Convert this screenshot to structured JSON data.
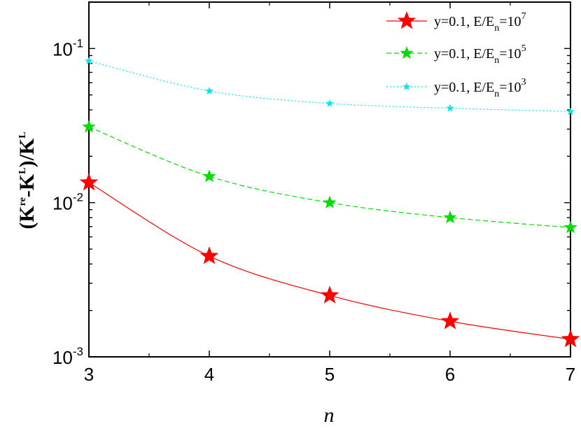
{
  "chart_data": {
    "type": "line",
    "xlabel": "n",
    "ylabel": {
      "base": "(K",
      "sup1": "re",
      "mid": "-K",
      "sup2": "L",
      "tail": ")/K",
      "sup3": "L"
    },
    "xlim": [
      3,
      7
    ],
    "ylim": [
      0.001,
      0.2
    ],
    "yscale": "log",
    "x_ticks": [
      3,
      4,
      5,
      6,
      7
    ],
    "y_ticks": [
      {
        "value": 0.001,
        "base": "10",
        "exp": "-3"
      },
      {
        "value": 0.01,
        "base": "10",
        "exp": "-2"
      },
      {
        "value": 0.1,
        "base": "10",
        "exp": "-1"
      }
    ],
    "grid": false,
    "legend_position": "top-right",
    "series": [
      {
        "name": {
          "pre": "y=0.1, E/E",
          "sub": "n",
          "mid": "=10",
          "sup": "7"
        },
        "color": "#ff0000",
        "line_style": "solid",
        "marker_size": "large",
        "x": [
          3,
          4,
          5,
          6,
          7
        ],
        "values": [
          0.0135,
          0.0045,
          0.0025,
          0.0017,
          0.0013
        ]
      },
      {
        "name": {
          "pre": "y=0.1, E/E",
          "sub": "n",
          "mid": "=10",
          "sup": "5"
        },
        "color": "#00dd00",
        "line_style": "dashed",
        "marker_size": "medium",
        "x": [
          3,
          4,
          5,
          6,
          7
        ],
        "values": [
          0.031,
          0.0148,
          0.01,
          0.008,
          0.0069
        ]
      },
      {
        "name": {
          "pre": "y=0.1, E/E",
          "sub": "n",
          "mid": "=10",
          "sup": "3"
        },
        "color": "#00e5ee",
        "line_style": "dotted",
        "marker_size": "small",
        "x": [
          3,
          4,
          5,
          6,
          7
        ],
        "values": [
          0.083,
          0.053,
          0.044,
          0.041,
          0.039
        ]
      }
    ]
  }
}
